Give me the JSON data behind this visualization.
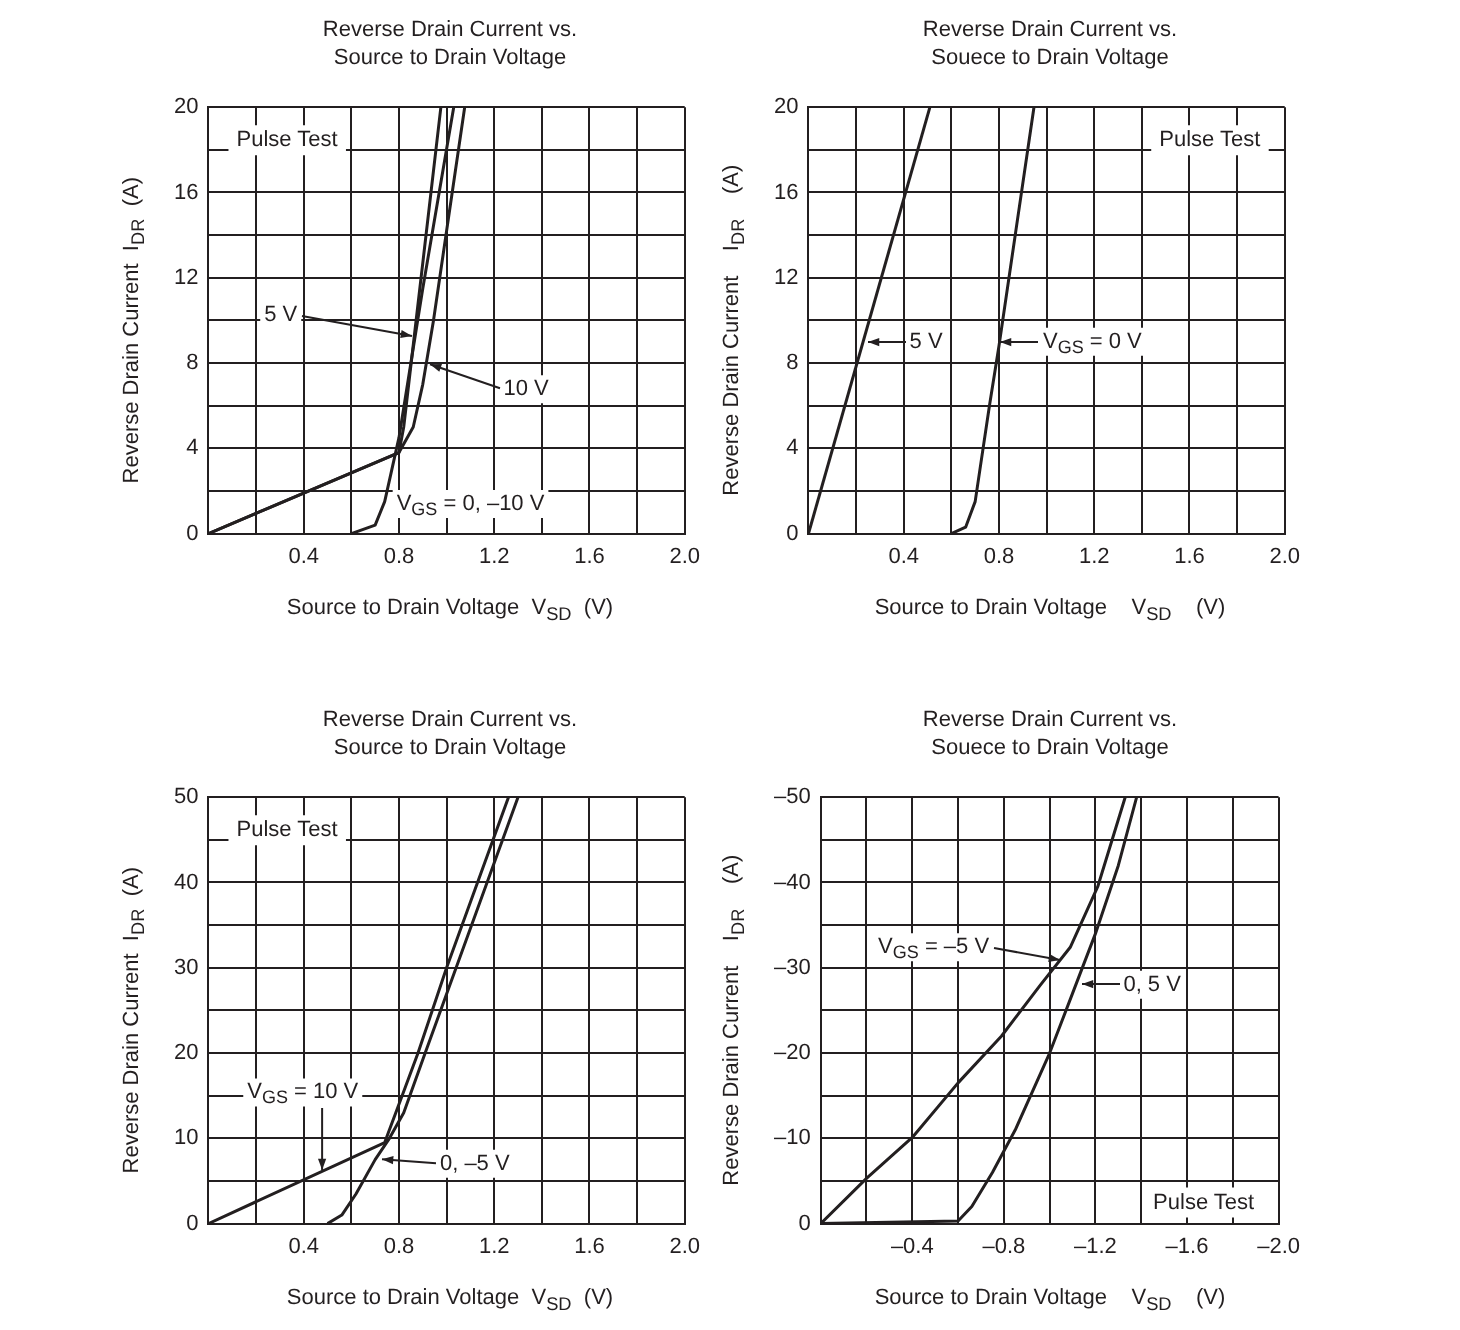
{
  "chart_data": [
    {
      "type": "line",
      "title": "Reverse Drain Current vs.\nSource to Drain Voltage",
      "xlabel": "Source to Drain Voltage  V$_{SD}$  (V)",
      "ylabel": "Reverse Drain Current  I$_{DR}$  (A)",
      "grid": true,
      "marker": "none",
      "xlim": [
        0,
        2.0
      ],
      "ylim": [
        0,
        20
      ],
      "xticks": [
        {
          "value": 0,
          "label": null
        },
        {
          "value": 0.2,
          "label": null
        },
        0.4,
        {
          "value": 0.6,
          "label": null
        },
        0.8,
        {
          "value": 1.0,
          "label": null
        },
        1.2,
        {
          "value": 1.4,
          "label": null
        },
        1.6,
        {
          "value": 1.8,
          "label": null
        },
        {
          "value": 2.0,
          "label": "2.0"
        }
      ],
      "yticks": [
        0,
        {
          "value": 2,
          "label": null
        },
        4,
        {
          "value": 6,
          "label": null
        },
        8,
        {
          "value": 10,
          "label": null
        },
        12,
        {
          "value": 14,
          "label": null
        },
        16,
        {
          "value": 18,
          "label": null
        },
        20
      ],
      "series": [
        {
          "color": "#231f20",
          "x": [
            0,
            0.8,
            0.82,
            0.976
          ],
          "values": [
            0,
            3.8,
            5,
            20
          ]
        },
        {
          "color": "#231f20",
          "x": [
            0.6,
            0.7,
            0.74,
            0.77,
            0.8,
            0.85,
            0.9,
            1.03
          ],
          "values": [
            0,
            0.4,
            1.5,
            3,
            4.5,
            8,
            11.5,
            20
          ]
        },
        {
          "color": "#231f20",
          "x": [
            0,
            0.8,
            0.86,
            0.9,
            0.945,
            1.076
          ],
          "values": [
            0,
            3.8,
            5,
            7,
            10,
            20
          ]
        }
      ],
      "annotations": [
        "Pulse Test",
        {
          "text": "5 V",
          "x": 0.86,
          "y": 9.3
        },
        {
          "text": "10 V",
          "x": 0.92,
          "y": 7.9
        },
        {
          "text": "V$_{GS}$ = 0, –10 V",
          "x": 0.74,
          "y": 1.2
        }
      ]
    },
    {
      "type": "line",
      "title": "Reverse Drain Current vs.\nSouece to Drain Voltage",
      "xlabel": "Source to Drain Voltage    V$_{SD}$    (V)",
      "ylabel": "Reverse Drain Current    I$_{DR}$    (A)",
      "grid": true,
      "marker": "none",
      "xlim": [
        0,
        2.0
      ],
      "ylim": [
        0,
        20
      ],
      "xticks": [
        {
          "value": 0,
          "label": null
        },
        {
          "value": 0.2,
          "label": null
        },
        0.4,
        {
          "value": 0.6,
          "label": null
        },
        0.8,
        {
          "value": 1.0,
          "label": null
        },
        1.2,
        {
          "value": 1.4,
          "label": null
        },
        1.6,
        {
          "value": 1.8,
          "label": null
        },
        {
          "value": 2.0,
          "label": "2.0"
        }
      ],
      "yticks": [
        0,
        {
          "value": 2,
          "label": null
        },
        4,
        {
          "value": 6,
          "label": null
        },
        8,
        {
          "value": 10,
          "label": null
        },
        12,
        {
          "value": 14,
          "label": null
        },
        16,
        {
          "value": 18,
          "label": null
        },
        20
      ],
      "series": [
        {
          "color": "#231f20",
          "x": [
            0,
            0.51
          ],
          "values": [
            0,
            20
          ]
        },
        {
          "color": "#231f20",
          "x": [
            0.6,
            0.66,
            0.7,
            0.72,
            0.76,
            0.8,
            0.947
          ],
          "values": [
            0,
            0.3,
            1.5,
            3,
            6,
            8.8,
            20
          ]
        }
      ],
      "annotations": [
        "Pulse Test",
        {
          "text": "5 V",
          "x": 0.24,
          "y": 9
        },
        {
          "text": "V$_{GS}$ = 0 V",
          "x": 0.8,
          "y": 9
        }
      ]
    },
    {
      "type": "line",
      "title": "Reverse Drain Current vs.\nSource to Drain Voltage",
      "xlabel": "Source to Drain Voltage  V$_{SD}$  (V)",
      "ylabel": "Reverse Drain Current  I$_{DR}$  (A)",
      "grid": true,
      "marker": "none",
      "xlim": [
        0,
        2.0
      ],
      "ylim": [
        0,
        50
      ],
      "xticks": [
        {
          "value": 0,
          "label": null
        },
        {
          "value": 0.2,
          "label": null
        },
        0.4,
        {
          "value": 0.6,
          "label": null
        },
        0.8,
        {
          "value": 1.0,
          "label": null
        },
        1.2,
        {
          "value": 1.4,
          "label": null
        },
        1.6,
        {
          "value": 1.8,
          "label": null
        },
        {
          "value": 2.0,
          "label": "2.0"
        }
      ],
      "yticks": [
        0,
        {
          "value": 5,
          "label": null
        },
        10,
        {
          "value": 15,
          "label": null
        },
        20,
        {
          "value": 25,
          "label": null
        },
        30,
        {
          "value": 35,
          "label": null
        },
        40,
        {
          "value": 45,
          "label": null
        },
        50
      ],
      "series": [
        {
          "color": "#231f20",
          "x": [
            0,
            0.74,
            0.8,
            0.88,
            1.0,
            1.26
          ],
          "values": [
            0,
            9.5,
            14,
            20,
            30,
            50
          ]
        },
        {
          "color": "#231f20",
          "x": [
            0.5,
            0.56,
            0.62,
            0.7,
            0.76,
            0.82,
            0.91,
            1.04,
            1.3
          ],
          "values": [
            0,
            1,
            3.5,
            7.5,
            10,
            13,
            20,
            30,
            50
          ]
        }
      ],
      "annotations": [
        "Pulse Test",
        {
          "text": "V$_{GS}$ = 10 V",
          "x": 0.48,
          "y": 6
        },
        {
          "text": "0, –5 V",
          "x": 0.72,
          "y": 7.5
        }
      ]
    },
    {
      "type": "line",
      "title": "Reverse Drain Current vs.\nSouece to Drain Voltage",
      "xlabel": "Source to Drain Voltage    V$_{SD}$    (V)",
      "ylabel": "Reverse Drain Current    I$_{DR}$    (A)",
      "grid": true,
      "marker": "none",
      "xlim": [
        0,
        -2.0
      ],
      "ylim": [
        0,
        -50
      ],
      "xticks": [
        {
          "value": 0,
          "label": null
        },
        {
          "value": -0.2,
          "label": null
        },
        {
          "value": -0.4,
          "label": "–0.4"
        },
        {
          "value": -0.6,
          "label": null
        },
        {
          "value": -0.8,
          "label": "–0.8"
        },
        {
          "value": -1.0,
          "label": null
        },
        {
          "value": -1.2,
          "label": "–1.2"
        },
        {
          "value": -1.4,
          "label": null
        },
        {
          "value": -1.6,
          "label": "–1.6"
        },
        {
          "value": -1.8,
          "label": null
        },
        {
          "value": -2.0,
          "label": "–2.0"
        }
      ],
      "yticks": [
        0,
        {
          "value": -5,
          "label": null
        },
        {
          "value": -10,
          "label": "–10"
        },
        {
          "value": -15,
          "label": null
        },
        {
          "value": -20,
          "label": "–20"
        },
        {
          "value": -25,
          "label": null
        },
        {
          "value": -30,
          "label": "–30"
        },
        {
          "value": -35,
          "label": null
        },
        {
          "value": -40,
          "label": "–40"
        },
        {
          "value": -45,
          "label": null
        },
        {
          "value": -50,
          "label": "–50"
        }
      ],
      "series": [
        {
          "color": "#231f20",
          "x": [
            0,
            -0.2,
            -0.4,
            -0.6,
            -0.79,
            -0.96,
            -1.09,
            -1.21,
            -1.33
          ],
          "values": [
            0,
            -5.3,
            -10.1,
            -16.5,
            -22,
            -28,
            -32.4,
            -39.5,
            -50
          ]
        },
        {
          "color": "#231f20",
          "x": [
            0,
            -0.6,
            -0.66,
            -0.75,
            -0.85,
            -1.0,
            -1.1,
            -1.2,
            -1.3,
            -1.38
          ],
          "values": [
            0,
            -0.3,
            -2,
            -6,
            -11,
            -20,
            -27,
            -34,
            -42,
            -50
          ]
        }
      ],
      "annotations": [
        "Pulse Test",
        {
          "text": "V$_{GS}$ = –5 V",
          "x": -1.05,
          "y": -31
        },
        {
          "text": "0, 5 V",
          "x": -1.13,
          "y": -28
        }
      ]
    }
  ]
}
